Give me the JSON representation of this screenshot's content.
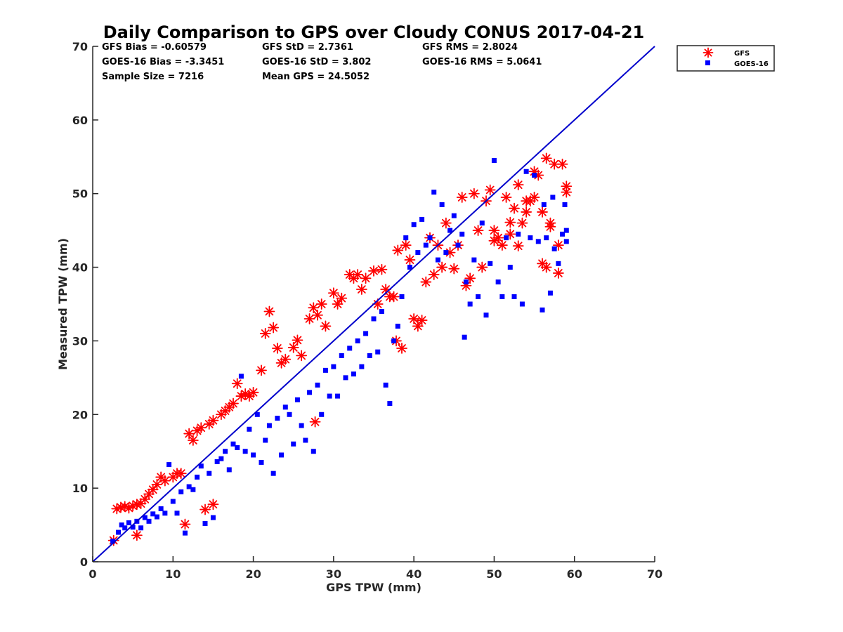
{
  "chart_data": {
    "type": "scatter",
    "title": "Daily Comparison to GPS over Cloudy CONUS 2017-04-21",
    "xlabel": "GPS TPW (mm)",
    "ylabel": "Measured TPW (mm)",
    "xlim": [
      0,
      70
    ],
    "ylim": [
      0,
      70
    ],
    "xticks": [
      "0",
      "10",
      "20",
      "30",
      "40",
      "50",
      "60",
      "70"
    ],
    "yticks": [
      "0",
      "10",
      "20",
      "30",
      "40",
      "50",
      "60",
      "70"
    ],
    "grid": false,
    "legend_position": "outside top-right",
    "stats": [
      [
        "GFS Bias = -0.60579",
        "GFS StD = 2.7361",
        "GFS RMS = 2.8024"
      ],
      [
        "GOES-16 Bias = -3.3451",
        "GOES-16 StD = 3.802",
        "GOES-16 RMS = 5.0641"
      ],
      [
        "Sample Size = 7216",
        "Mean GPS = 24.5052"
      ]
    ],
    "reference_line": {
      "from": [
        0,
        0
      ],
      "to": [
        70,
        70
      ],
      "color": "#0000cc"
    },
    "series": [
      {
        "name": "GFS",
        "marker": "asterisk",
        "color": "#ff0000",
        "points": [
          [
            2.6,
            2.9
          ],
          [
            3,
            7.2
          ],
          [
            3.5,
            7.4
          ],
          [
            4,
            7.5
          ],
          [
            4.5,
            7.3
          ],
          [
            5,
            7.6
          ],
          [
            5.5,
            3.6
          ],
          [
            5.5,
            7.8
          ],
          [
            6,
            7.9
          ],
          [
            6.5,
            8.5
          ],
          [
            7,
            9.2
          ],
          [
            7.5,
            9.8
          ],
          [
            8,
            10.5
          ],
          [
            8.5,
            11.5
          ],
          [
            9,
            11
          ],
          [
            10,
            11.5
          ],
          [
            10.5,
            12
          ],
          [
            11,
            12
          ],
          [
            11.5,
            5.1
          ],
          [
            12,
            17.4
          ],
          [
            12.5,
            16.5
          ],
          [
            13,
            17.8
          ],
          [
            13.5,
            18.2
          ],
          [
            14,
            7.1
          ],
          [
            14.5,
            18.7
          ],
          [
            15,
            7.8
          ],
          [
            15,
            19.2
          ],
          [
            16,
            20
          ],
          [
            16.5,
            20.5
          ],
          [
            17,
            21
          ],
          [
            17.5,
            21.5
          ],
          [
            18,
            24.2
          ],
          [
            18.5,
            22.5
          ],
          [
            19,
            22.8
          ],
          [
            19.5,
            22.5
          ],
          [
            20,
            23
          ],
          [
            21,
            26
          ],
          [
            21.5,
            31
          ],
          [
            22,
            34
          ],
          [
            22.5,
            31.8
          ],
          [
            23,
            29
          ],
          [
            23.5,
            27
          ],
          [
            24,
            27.5
          ],
          [
            25,
            29.1
          ],
          [
            25.5,
            30.1
          ],
          [
            26,
            28
          ],
          [
            27,
            33
          ],
          [
            27.5,
            34.5
          ],
          [
            27.7,
            19
          ],
          [
            28,
            33.5
          ],
          [
            28.5,
            35
          ],
          [
            29,
            32
          ],
          [
            30,
            36.5
          ],
          [
            30.5,
            35
          ],
          [
            31,
            35.8
          ],
          [
            32,
            39
          ],
          [
            32.5,
            38.5
          ],
          [
            33,
            39
          ],
          [
            33.5,
            37
          ],
          [
            34,
            38.5
          ],
          [
            35,
            39.5
          ],
          [
            35.5,
            35
          ],
          [
            36,
            39.7
          ],
          [
            36.5,
            37
          ],
          [
            37,
            36
          ],
          [
            37.5,
            36
          ],
          [
            37.8,
            30
          ],
          [
            38,
            42.3
          ],
          [
            38.5,
            29
          ],
          [
            39,
            43
          ],
          [
            39.5,
            41
          ],
          [
            40,
            33
          ],
          [
            40.5,
            32
          ],
          [
            41,
            32.8
          ],
          [
            41.5,
            38
          ],
          [
            42,
            44
          ],
          [
            42.5,
            39
          ],
          [
            43,
            43
          ],
          [
            43.5,
            40
          ],
          [
            44,
            46
          ],
          [
            44.5,
            42
          ],
          [
            45,
            39.8
          ],
          [
            45.5,
            43
          ],
          [
            46,
            49.5
          ],
          [
            46.5,
            37.5
          ],
          [
            47,
            38.5
          ],
          [
            47.5,
            50
          ],
          [
            48,
            45
          ],
          [
            48.5,
            40
          ],
          [
            49,
            49
          ],
          [
            49.5,
            50.5
          ],
          [
            50,
            45
          ],
          [
            50.5,
            44
          ],
          [
            51,
            43
          ],
          [
            51.5,
            49.5
          ],
          [
            52,
            44.5
          ],
          [
            52.5,
            48
          ],
          [
            53,
            51.2
          ],
          [
            53.5,
            46
          ],
          [
            54,
            47.5
          ],
          [
            54.5,
            49
          ],
          [
            55,
            49.5
          ],
          [
            55.5,
            52.5
          ],
          [
            56,
            47.5
          ],
          [
            56,
            40.5
          ],
          [
            56.5,
            54.8
          ],
          [
            57,
            45.5
          ],
          [
            57.5,
            54
          ],
          [
            58,
            39.2
          ],
          [
            58.5,
            54
          ],
          [
            59,
            51
          ],
          [
            59,
            50.2
          ],
          [
            58,
            43
          ],
          [
            57,
            46
          ],
          [
            56.5,
            40
          ],
          [
            55,
            53
          ],
          [
            54,
            49
          ],
          [
            53,
            42.9
          ],
          [
            52,
            46.1
          ],
          [
            50,
            43.6
          ]
        ]
      },
      {
        "name": "GOES-16",
        "marker": "square",
        "color": "#0000ff",
        "points": [
          [
            2.5,
            2.8
          ],
          [
            3.2,
            4
          ],
          [
            3.6,
            5
          ],
          [
            4,
            4.6
          ],
          [
            4.5,
            5.3
          ],
          [
            5,
            4.7
          ],
          [
            5.5,
            5.5
          ],
          [
            6,
            4.6
          ],
          [
            6.5,
            6
          ],
          [
            7,
            5.5
          ],
          [
            7.5,
            6.5
          ],
          [
            8,
            6.1
          ],
          [
            8.5,
            7.2
          ],
          [
            9,
            6.6
          ],
          [
            9.5,
            13.2
          ],
          [
            10,
            8.2
          ],
          [
            10.5,
            6.6
          ],
          [
            11,
            9.5
          ],
          [
            11.5,
            3.9
          ],
          [
            12,
            10.2
          ],
          [
            12.5,
            9.8
          ],
          [
            13,
            11.5
          ],
          [
            13.5,
            13
          ],
          [
            14,
            5.2
          ],
          [
            14.5,
            12
          ],
          [
            15,
            6
          ],
          [
            15.5,
            13.6
          ],
          [
            16,
            14
          ],
          [
            16.5,
            15
          ],
          [
            17,
            12.5
          ],
          [
            17.5,
            16
          ],
          [
            18,
            15.5
          ],
          [
            18.5,
            25.2
          ],
          [
            19,
            15
          ],
          [
            19.5,
            18
          ],
          [
            20,
            14.5
          ],
          [
            20.5,
            20
          ],
          [
            21,
            13.5
          ],
          [
            21.5,
            16.5
          ],
          [
            22,
            18.5
          ],
          [
            22.5,
            12
          ],
          [
            23,
            19.5
          ],
          [
            23.5,
            14.5
          ],
          [
            24,
            21
          ],
          [
            24.5,
            20
          ],
          [
            25,
            16
          ],
          [
            25.5,
            22
          ],
          [
            26,
            18.5
          ],
          [
            26.5,
            16.5
          ],
          [
            27,
            23
          ],
          [
            27.5,
            15
          ],
          [
            28,
            24
          ],
          [
            28.5,
            20
          ],
          [
            29,
            26
          ],
          [
            29.5,
            22.5
          ],
          [
            30,
            26.5
          ],
          [
            30.5,
            22.5
          ],
          [
            31,
            28
          ],
          [
            31.5,
            25
          ],
          [
            32,
            29
          ],
          [
            32.5,
            25.5
          ],
          [
            33,
            30
          ],
          [
            33.5,
            26.5
          ],
          [
            34,
            31
          ],
          [
            34.5,
            28
          ],
          [
            35,
            33
          ],
          [
            35.5,
            28.5
          ],
          [
            36,
            34
          ],
          [
            36.5,
            24
          ],
          [
            37,
            21.5
          ],
          [
            37.5,
            30
          ],
          [
            38,
            32
          ],
          [
            38.5,
            36
          ],
          [
            39,
            44
          ],
          [
            39.5,
            40
          ],
          [
            40,
            45.8
          ],
          [
            40.5,
            42
          ],
          [
            41,
            46.5
          ],
          [
            41.5,
            43
          ],
          [
            42,
            44
          ],
          [
            42.5,
            50.2
          ],
          [
            43,
            41
          ],
          [
            43.5,
            48.5
          ],
          [
            44,
            42
          ],
          [
            44.5,
            45
          ],
          [
            45,
            47
          ],
          [
            45.5,
            43
          ],
          [
            46,
            44.5
          ],
          [
            46.3,
            30.5
          ],
          [
            46.5,
            38
          ],
          [
            47,
            35
          ],
          [
            47.5,
            41
          ],
          [
            48,
            36
          ],
          [
            48.5,
            46
          ],
          [
            49,
            33.5
          ],
          [
            49.5,
            40.5
          ],
          [
            50,
            54.5
          ],
          [
            50.5,
            38
          ],
          [
            51,
            36
          ],
          [
            51.5,
            44
          ],
          [
            52,
            40
          ],
          [
            52.5,
            36
          ],
          [
            53,
            44.5
          ],
          [
            53.5,
            35
          ],
          [
            54,
            53
          ],
          [
            54.5,
            44
          ],
          [
            55,
            52.5
          ],
          [
            55.5,
            43.5
          ],
          [
            56,
            34.2
          ],
          [
            56.2,
            48.5
          ],
          [
            56.5,
            44
          ],
          [
            57,
            36.5
          ],
          [
            57.3,
            49.5
          ],
          [
            57.5,
            42.5
          ],
          [
            58,
            40.5
          ],
          [
            58.5,
            44.5
          ],
          [
            58.8,
            48.5
          ],
          [
            59,
            43.5
          ],
          [
            59,
            45
          ]
        ]
      }
    ]
  }
}
